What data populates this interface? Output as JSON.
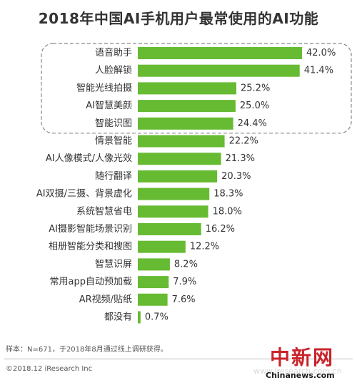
{
  "chart_data": {
    "type": "bar",
    "orientation": "horizontal",
    "title": "2018年中国AI手机用户最常使用的AI功能",
    "categories": [
      "语音助手",
      "人脸解锁",
      "智能光线拍摄",
      "AI智慧美颜",
      "智能识图",
      "情景智能",
      "AI人像模式/人像光效",
      "随行翻译",
      "AI双摄/三摄、背景虚化",
      "系统智慧省电",
      "AI摄影智能场景识别",
      "相册智能分类和搜图",
      "智慧识屏",
      "常用app自动预加载",
      "AR视频/贴纸",
      "都没有"
    ],
    "values": [
      42.0,
      41.4,
      25.2,
      25.0,
      24.4,
      22.2,
      21.3,
      20.3,
      18.3,
      18.0,
      16.2,
      12.2,
      8.2,
      7.9,
      7.6,
      0.7
    ],
    "value_labels": [
      "42.0%",
      "41.4%",
      "25.2%",
      "25.0%",
      "24.4%",
      "22.2%",
      "21.3%",
      "20.3%",
      "18.3%",
      "18.0%",
      "16.2%",
      "12.2%",
      "8.2%",
      "7.9%",
      "7.6%",
      "0.7%"
    ],
    "bar_color": "#66bb33",
    "highlight_box": "dashed outline around the top five items",
    "highlight_count": 5,
    "xlim": [
      0,
      42
    ],
    "grid": false,
    "legend": "none"
  },
  "footnote": "样本：N=671，于2018年8月通过线上调研获得。",
  "copyright": "©2018.12 iResearch Inc",
  "watermark": {
    "logo": "中新网",
    "url": "Chinanews.com",
    "faint": "www.iresearch.com.cn"
  }
}
